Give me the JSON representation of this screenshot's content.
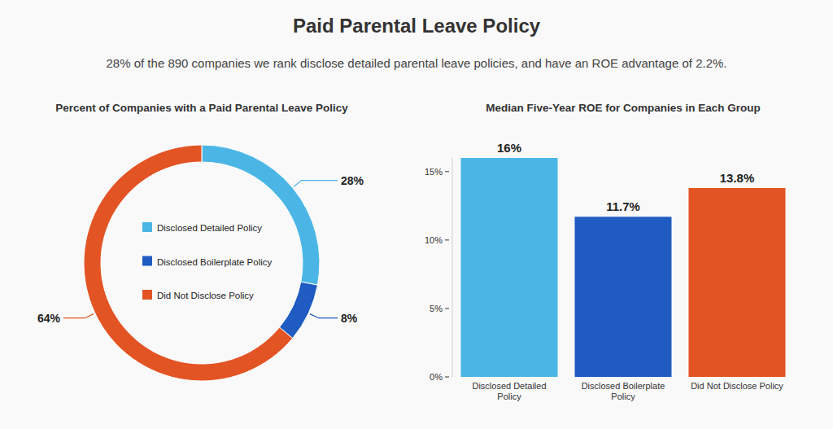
{
  "header": {
    "title": "Paid Parental Leave Policy",
    "subtitle": "28% of the 890 companies we rank disclose detailed parental leave policies, and have an ROE advantage of 2.2%."
  },
  "chart_data": [
    {
      "type": "donut",
      "title": "Percent of Companies with a Paid Parental Leave Policy",
      "categories": [
        "Disclosed Detailed Policy",
        "Disclosed Boilerplate Policy",
        "Did Not Disclose Policy"
      ],
      "values": [
        28,
        8,
        64
      ],
      "value_labels": [
        "28%",
        "8%",
        "64%"
      ],
      "colors": [
        "#4bb6e6",
        "#1f5bc1",
        "#e35424"
      ],
      "data_labels": true,
      "legend": "center"
    },
    {
      "type": "bar",
      "title": "Median Five-Year ROE for Companies in Each Group",
      "categories": [
        "Disclosed Detailed Policy",
        "Disclosed Boilerplate Policy",
        "Did Not Disclose Policy"
      ],
      "values": [
        16,
        11.7,
        13.8
      ],
      "value_labels": [
        "16%",
        "11.7%",
        "13.8%"
      ],
      "colors": [
        "#4bb6e6",
        "#1f5bc1",
        "#e35424"
      ],
      "ylim": [
        0,
        16
      ],
      "yticks": [
        {
          "value": 0,
          "label": "0%"
        },
        {
          "value": 5,
          "label": "5%"
        },
        {
          "value": 10,
          "label": "10%"
        },
        {
          "value": 15,
          "label": "15%"
        }
      ],
      "grid": false,
      "data_labels": true
    }
  ]
}
